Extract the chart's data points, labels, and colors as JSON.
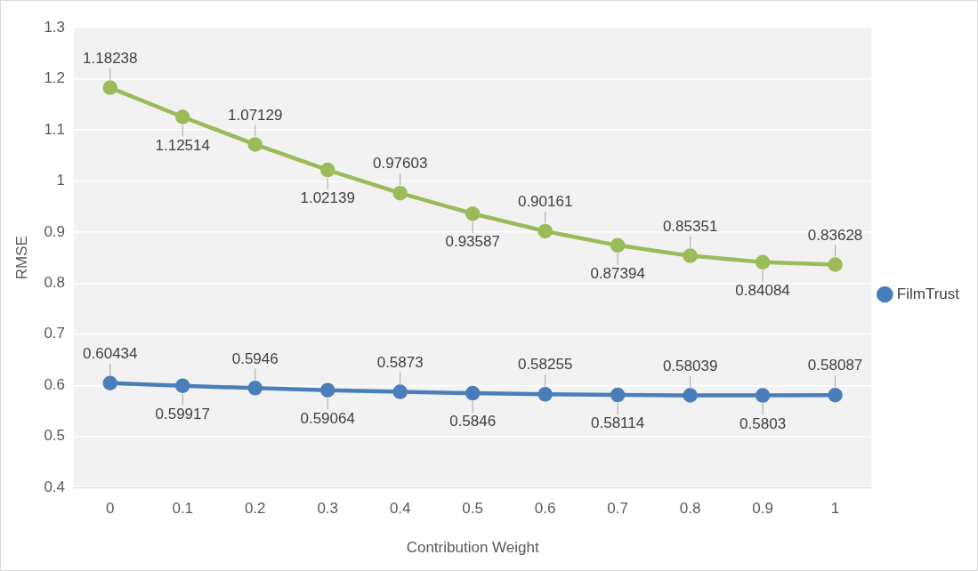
{
  "chart_data": {
    "type": "line",
    "xlabel": "Contribution Weight",
    "ylabel": "RMSE",
    "categories": [
      "0",
      "0.1",
      "0.2",
      "0.3",
      "0.4",
      "0.5",
      "0.6",
      "0.7",
      "0.8",
      "0.9",
      "1"
    ],
    "series": [
      {
        "name": "FilmTrust",
        "color": "#4a7ebb",
        "values": [
          0.60434,
          0.59917,
          0.5946,
          0.59064,
          0.5873,
          0.5846,
          0.58255,
          0.58114,
          0.58039,
          0.5803,
          0.58087
        ]
      },
      {
        "color": "#9bbb59",
        "values": [
          1.18238,
          1.12514,
          1.07129,
          1.02139,
          0.97603,
          0.93587,
          0.90161,
          0.87394,
          0.85351,
          0.84084,
          0.83628
        ]
      }
    ],
    "ylim": [
      0.4,
      1.3
    ],
    "yticks": [
      0.4,
      0.5,
      0.6,
      0.7,
      0.8,
      0.9,
      1,
      1.1,
      1.2,
      1.3
    ],
    "grid": "y",
    "legend": "right",
    "marker": "circle",
    "line_style": "solid",
    "data_labels": true
  }
}
